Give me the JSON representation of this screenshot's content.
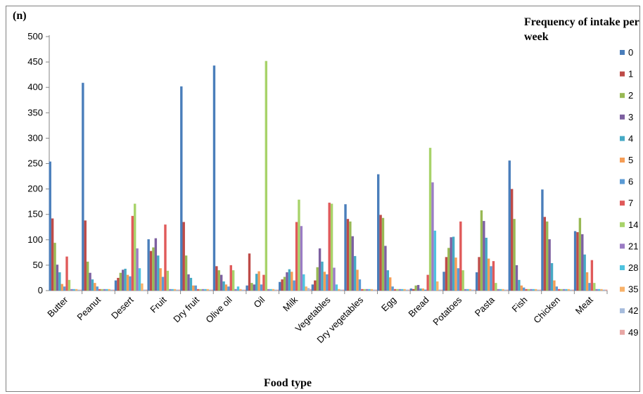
{
  "chart_data": {
    "type": "bar",
    "panel_label": "(n)",
    "xlabel": "Food type",
    "ylabel": "",
    "ylim": [
      0,
      500
    ],
    "yticks": [
      0,
      50,
      100,
      150,
      200,
      250,
      300,
      350,
      400,
      450,
      500
    ],
    "grid": false,
    "legend_placement": "right",
    "legend_title": "Frequency of intake per week",
    "categories": [
      "Butter",
      "Peanut",
      "Desert",
      "Fruit",
      "Dry fruit",
      "Olive oil",
      "Oil",
      "Milk",
      "Vegetables",
      "Dry vegetables",
      "Egg",
      "Bread",
      "Potatoes",
      "Pasta",
      "Fish",
      "Chicken",
      "Meat"
    ],
    "series": [
      {
        "name": "0",
        "color": "#4a7ebb",
        "values": [
          254,
          409,
          20,
          101,
          402,
          443,
          10,
          17,
          12,
          170,
          229,
          4,
          37,
          36,
          256,
          199,
          117
        ]
      },
      {
        "name": "1",
        "color": "#be4b48",
        "values": [
          142,
          138,
          25,
          78,
          135,
          48,
          73,
          22,
          20,
          141,
          149,
          3,
          66,
          66,
          200,
          145,
          115
        ]
      },
      {
        "name": "2",
        "color": "#98b954",
        "values": [
          94,
          57,
          35,
          85,
          69,
          40,
          15,
          27,
          46,
          136,
          143,
          10,
          84,
          158,
          141,
          136,
          143
        ]
      },
      {
        "name": "3",
        "color": "#7d60a0",
        "values": [
          51,
          35,
          41,
          103,
          32,
          31,
          12,
          36,
          83,
          107,
          88,
          11,
          105,
          137,
          50,
          101,
          111
        ]
      },
      {
        "name": "4",
        "color": "#46aac5",
        "values": [
          36,
          22,
          43,
          69,
          25,
          18,
          33,
          42,
          57,
          68,
          40,
          4,
          106,
          104,
          21,
          54,
          71
        ]
      },
      {
        "name": "5",
        "color": "#f59d56",
        "values": [
          13,
          15,
          31,
          44,
          10,
          12,
          38,
          37,
          37,
          41,
          26,
          4,
          65,
          63,
          10,
          20,
          36
        ]
      },
      {
        "name": "6",
        "color": "#5b9bd5",
        "values": [
          8,
          8,
          28,
          27,
          10,
          8,
          12,
          20,
          32,
          22,
          8,
          2,
          44,
          48,
          6,
          8,
          15
        ]
      },
      {
        "name": "7",
        "color": "#e05a5a",
        "values": [
          67,
          3,
          147,
          130,
          3,
          50,
          31,
          135,
          173,
          3,
          3,
          31,
          136,
          58,
          3,
          3,
          60
        ]
      },
      {
        "name": "14",
        "color": "#a8d36a",
        "values": [
          21,
          3,
          171,
          39,
          3,
          40,
          452,
          179,
          171,
          3,
          3,
          281,
          40,
          15,
          3,
          3,
          15
        ]
      },
      {
        "name": "21",
        "color": "#9b7cc4",
        "values": [
          3,
          3,
          83,
          3,
          3,
          3,
          3,
          127,
          45,
          3,
          3,
          213,
          3,
          3,
          3,
          3,
          3
        ]
      },
      {
        "name": "28",
        "color": "#4fc3df",
        "values": [
          3,
          3,
          44,
          3,
          3,
          8,
          3,
          32,
          12,
          3,
          3,
          118,
          3,
          3,
          3,
          3,
          3
        ]
      },
      {
        "name": "35",
        "color": "#f8b26a",
        "values": [
          3,
          3,
          14,
          3,
          3,
          3,
          3,
          8,
          3,
          3,
          3,
          18,
          3,
          3,
          3,
          3,
          3
        ]
      },
      {
        "name": "42",
        "color": "#a6bcdc",
        "values": [
          2,
          2,
          2,
          2,
          2,
          2,
          2,
          5,
          2,
          2,
          2,
          2,
          2,
          2,
          2,
          2,
          2
        ]
      },
      {
        "name": "49",
        "color": "#e8a6a4",
        "values": [
          2,
          2,
          2,
          2,
          2,
          2,
          2,
          3,
          2,
          2,
          2,
          2,
          2,
          2,
          2,
          2,
          2
        ]
      }
    ]
  }
}
